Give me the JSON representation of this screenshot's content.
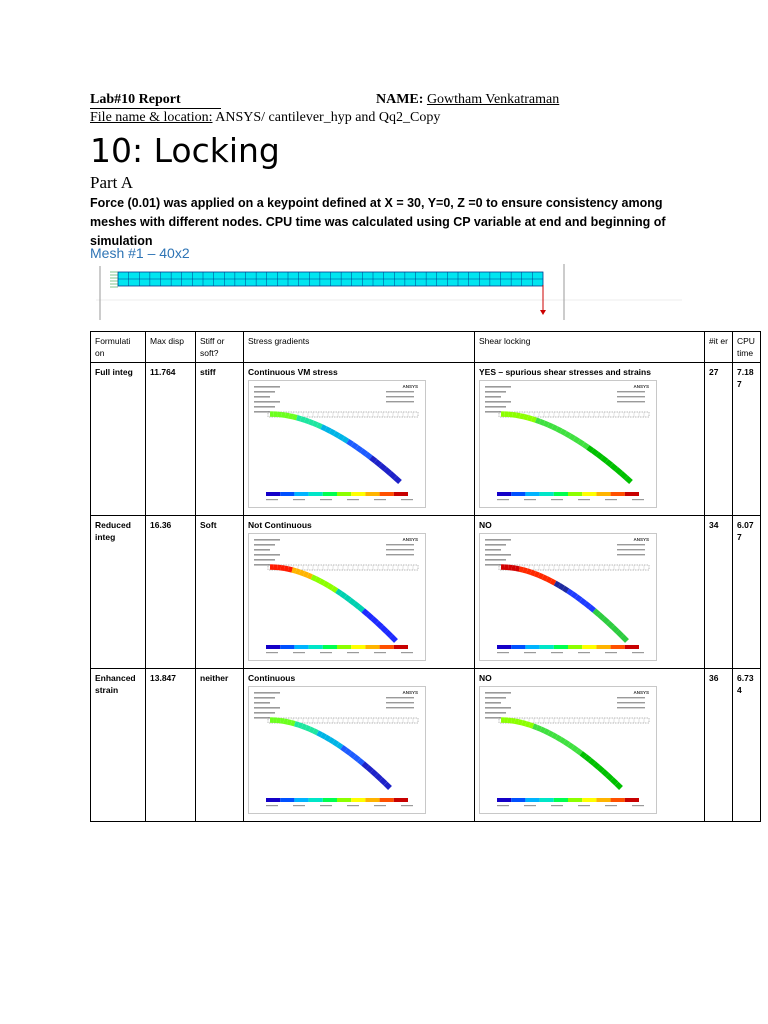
{
  "header": {
    "lab_label": "Lab#10  Report",
    "name_label": "NAME:",
    "name_value": "Gowtham Venkatraman",
    "file_label": "File name & location:",
    "file_value": "ANSYS/ cantilever_hyp and Qq2_Copy"
  },
  "title": "10: Locking",
  "part": "Part A",
  "paragraph": "Force (0.01) was applied on a keypoint defined at X = 30, Y=0, Z =0 to ensure consistency among meshes with different nodes. CPU time was calculated using CP variable at end and beginning of simulation",
  "mesh_heading": "Mesh #1 – 40x2",
  "table": {
    "headers": [
      "Formulati on",
      "Max disp",
      "Stiff or soft?",
      "Stress gradients",
      "Shear locking",
      "#it er",
      "CPU time"
    ],
    "rows": [
      {
        "formulation": "Full integ",
        "max_disp": "11.764",
        "stiffness": "stiff",
        "stress": "Continuous VM stress",
        "shear": "YES – spurious shear stresses and strains",
        "iter": "27",
        "cpu": "7.18 7"
      },
      {
        "formulation": "Reduced integ",
        "max_disp": "16.36",
        "stiffness": "Soft",
        "stress": "Not Continuous",
        "shear": "NO",
        "iter": "34",
        "cpu": "6.07 7"
      },
      {
        "formulation": "Enhanced strain",
        "max_disp": "13.847",
        "stiffness": "neither",
        "stress": "Continuous",
        "shear": "NO",
        "iter": "36",
        "cpu": "6.73 4"
      }
    ]
  },
  "plot_text": {
    "brand": "ANSYS"
  },
  "colors": {
    "accent": "#2e74b5",
    "beam": "#00e5f0"
  }
}
